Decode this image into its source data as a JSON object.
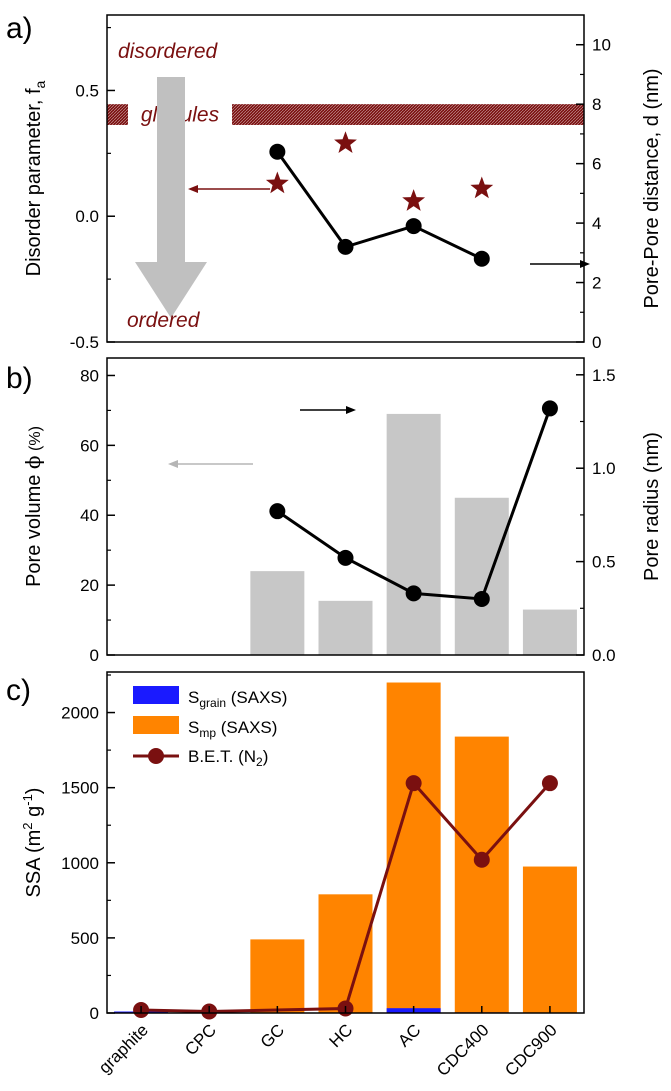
{
  "chart_data": [
    {
      "panel_label": "a)",
      "type": "scatter+line",
      "categories": [
        "graphite",
        "CPC",
        "GC",
        "HC",
        "AC",
        "CDC400",
        "CDC900"
      ],
      "ylabel_left": "Disorder parameter, f",
      "ylabel_left_sub": "a",
      "ylabel_right": "Pore-Pore distance, d (nm)",
      "ylim_left": [
        -0.5,
        0.8
      ],
      "yticks_left": [
        "-0.5",
        "0.0",
        "0.5"
      ],
      "ylim_right": [
        0,
        11
      ],
      "yticks_right": [
        "0",
        "2",
        "4",
        "6",
        "8",
        "10"
      ],
      "stars": {
        "axis": "left",
        "color": "#7a1010",
        "x": [
          "GC",
          "HC",
          "AC",
          "CDC400"
        ],
        "values": [
          0.13,
          0.29,
          0.06,
          0.11
        ]
      },
      "line": {
        "axis": "right",
        "color": "#000000",
        "x": [
          "GC",
          "HC",
          "AC",
          "CDC400"
        ],
        "values": [
          6.4,
          3.2,
          3.9,
          2.8
        ]
      },
      "band": {
        "text": "globules",
        "y_right": [
          7.3,
          8.0
        ],
        "color": "#7a1010"
      },
      "annotations": {
        "top": "disordered",
        "bottom": "ordered",
        "color": "#7a1010"
      },
      "arrow_big_color": "#c0c0c0"
    },
    {
      "panel_label": "b)",
      "type": "bar+line",
      "categories": [
        "graphite",
        "CPC",
        "GC",
        "HC",
        "AC",
        "CDC400",
        "CDC900"
      ],
      "ylabel_left": "Pore volume ",
      "ylabel_left_phi": "ϕ",
      "ylabel_left_unit": " (%)",
      "ylabel_right": "Pore radius (nm)",
      "ylim_left": [
        0,
        85
      ],
      "yticks_left": [
        "0",
        "20",
        "40",
        "60",
        "80"
      ],
      "ylim_right": [
        0,
        1.59
      ],
      "yticks_right": [
        "0.0",
        "0.5",
        "1.0",
        "1.5"
      ],
      "bars": {
        "axis": "left",
        "color": "#c7c7c7",
        "x": [
          "GC",
          "HC",
          "AC",
          "CDC400",
          "CDC900"
        ],
        "values": [
          24,
          15.5,
          69,
          45,
          13
        ]
      },
      "line": {
        "axis": "right",
        "color": "#000000",
        "x": [
          "GC",
          "HC",
          "AC",
          "CDC400",
          "CDC900"
        ],
        "values": [
          0.77,
          0.52,
          0.33,
          0.3,
          1.32
        ]
      }
    },
    {
      "panel_label": "c)",
      "type": "bar+line",
      "categories": [
        "graphite",
        "CPC",
        "GC",
        "HC",
        "AC",
        "CDC400",
        "CDC900"
      ],
      "ylabel": "SSA (m",
      "ylabel_sup1": "2",
      "ylabel_mid": " g",
      "ylabel_sup2": "-1",
      "ylabel_end": ")",
      "ylim": [
        0,
        2270
      ],
      "yticks": [
        "0",
        "500",
        "1000",
        "1500",
        "2000"
      ],
      "series": [
        {
          "name": "S",
          "name_sub": "grain",
          "name_suffix": " (SAXS)",
          "kind": "bar",
          "color": "#1a1aff",
          "x": [
            "graphite",
            "CPC",
            "GC",
            "HC",
            "AC",
            "CDC400",
            "CDC900"
          ],
          "values": [
            10,
            4,
            0,
            0,
            32,
            4,
            0
          ]
        },
        {
          "name": "S",
          "name_sub": "mp",
          "name_suffix": " (SAXS)",
          "kind": "bar",
          "color": "#ff8400",
          "x": [
            "GC",
            "HC",
            "AC",
            "CDC400",
            "CDC900"
          ],
          "values": [
            490,
            790,
            2200,
            1840,
            975
          ]
        },
        {
          "name": "B.E.T. (N",
          "name_sub": "2",
          "name_suffix": ")",
          "kind": "line",
          "color": "#7a1010",
          "x": [
            "graphite",
            "CPC",
            "HC",
            "AC",
            "CDC400",
            "CDC900"
          ],
          "values": [
            20,
            10,
            30,
            1530,
            1020,
            1530
          ]
        }
      ]
    }
  ]
}
